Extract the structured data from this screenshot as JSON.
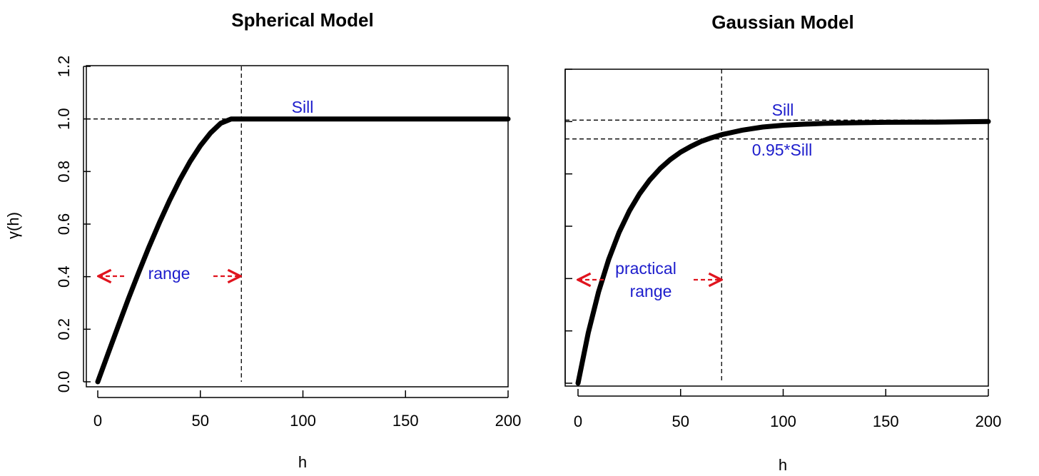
{
  "chart_data": [
    {
      "type": "line",
      "title": "Spherical Model",
      "xlabel": "h",
      "ylabel": "γ(h)",
      "xlim": [
        0,
        200
      ],
      "ylim": [
        0,
        1.2
      ],
      "xticks": [
        "0",
        "50",
        "100",
        "150",
        "200"
      ],
      "yticks": [
        "0.0",
        "0.2",
        "0.4",
        "0.6",
        "0.8",
        "1.0",
        "1.2"
      ],
      "series": [
        {
          "x": [
            0,
            5,
            10,
            15,
            20,
            25,
            30,
            35,
            40,
            45,
            50,
            55,
            60,
            65,
            70,
            100,
            150,
            200
          ],
          "y": [
            0.0,
            0.107,
            0.213,
            0.317,
            0.417,
            0.514,
            0.605,
            0.69,
            0.768,
            0.838,
            0.898,
            0.947,
            0.984,
            1.0,
            1.0,
            1.0,
            1.0,
            1.0
          ]
        }
      ],
      "annotations": {
        "sill_label": "Sill",
        "sill_value": 1.0,
        "range_label": "range",
        "range_value": 70,
        "arrow_y": 0.4
      }
    },
    {
      "type": "line",
      "title": "Gaussian Model",
      "xlabel": "h",
      "ylabel": "",
      "xlim": [
        0,
        200
      ],
      "ylim": [
        0,
        1.2
      ],
      "xticks": [
        "0",
        "50",
        "100",
        "150",
        "200"
      ],
      "yticks": [],
      "series": [
        {
          "x": [
            0,
            5,
            10,
            15,
            20,
            25,
            30,
            35,
            40,
            45,
            50,
            55,
            60,
            65,
            70,
            80,
            90,
            100,
            110,
            120,
            130,
            150,
            175,
            200
          ],
          "y": [
            0.0,
            0.193,
            0.349,
            0.474,
            0.576,
            0.658,
            0.724,
            0.777,
            0.82,
            0.855,
            0.883,
            0.905,
            0.924,
            0.938,
            0.95,
            0.967,
            0.979,
            0.986,
            0.99,
            0.993,
            0.995,
            0.997,
            0.998,
            1.0
          ]
        }
      ],
      "annotations": {
        "sill_label": "Sill",
        "sill_value": 1.0,
        "pct_label": "0.95*Sill",
        "pct_value": 0.95,
        "range_label_line1": "practical",
        "range_label_line2": "range",
        "range_value": 70,
        "arrow_y": 0.4
      }
    }
  ],
  "colors": {
    "curve": "#000000",
    "annotation_text": "#1c1ccc",
    "arrow": "#e0141e"
  }
}
